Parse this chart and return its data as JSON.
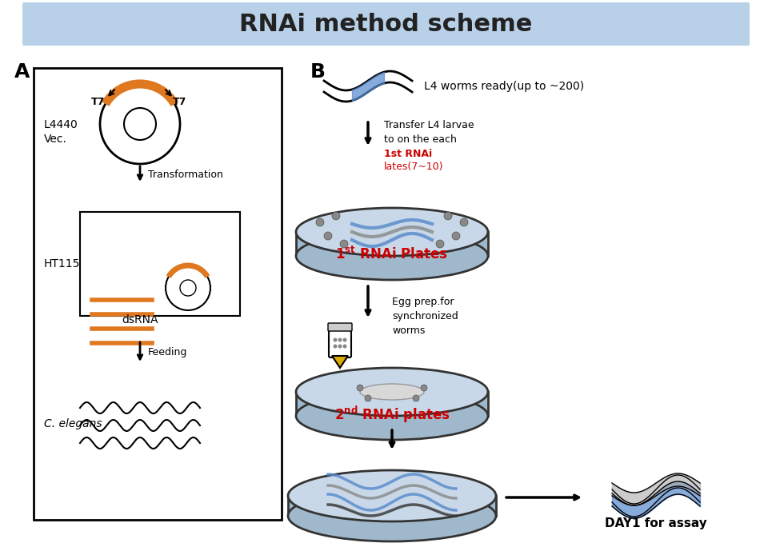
{
  "title": "RNAi method scheme",
  "title_bg_color": "#b8d0e8",
  "title_font_size": 22,
  "title_font_weight": "bold",
  "bg_color": "#ffffff",
  "panel_A_label": "A",
  "panel_B_label": "B",
  "label_L4440": "L4440\nVec.",
  "label_HT115": "HT115",
  "label_dsRNA": "dsRNA",
  "label_feeding": "Feeding",
  "label_c_elegans": "C. elegans",
  "label_transformation": "Transformation",
  "label_L4_worms": "L4 worms ready(up to ~200)",
  "label_transfer": "Transfer L4 larvae\nto on the each",
  "label_1st_rnai_red": "1st RNAi\nlates(7~10)",
  "label_1st_plates": "1st RNAi Plates",
  "label_egg_prep": "Egg prep.for\nsynchronized\nworms",
  "label_2nd_plates": "2nd RNAi plates",
  "label_day1": "DAY1 for assay",
  "orange_color": "#e07820",
  "red_color": "#cc0000",
  "blue_color": "#5588cc",
  "gray_color": "#aaaaaa",
  "dark_gray": "#555555",
  "plate_top_color": "#c8d8e8",
  "plate_side_color": "#a0b8cc",
  "plate_edge_color": "#333333"
}
